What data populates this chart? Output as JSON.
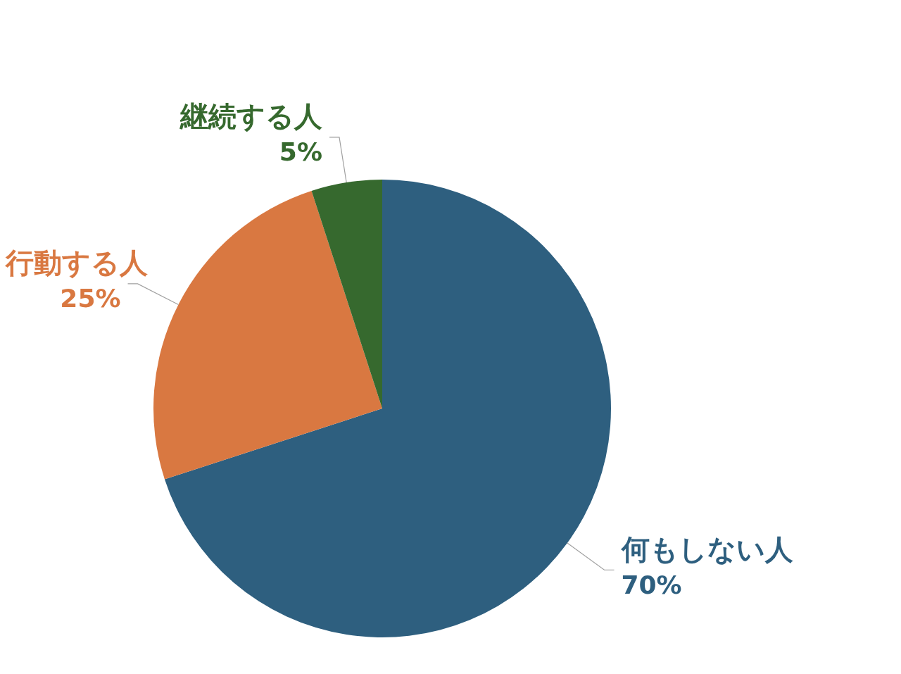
{
  "chart_data": {
    "type": "pie",
    "categories": [
      "何もしない人",
      "行動する人",
      "継続する人"
    ],
    "values": [
      70,
      25,
      5
    ],
    "colors": [
      "#2e5f7f",
      "#d97841",
      "#36692e"
    ],
    "value_labels": [
      "70%",
      "25%",
      "5%"
    ],
    "legend": false
  }
}
